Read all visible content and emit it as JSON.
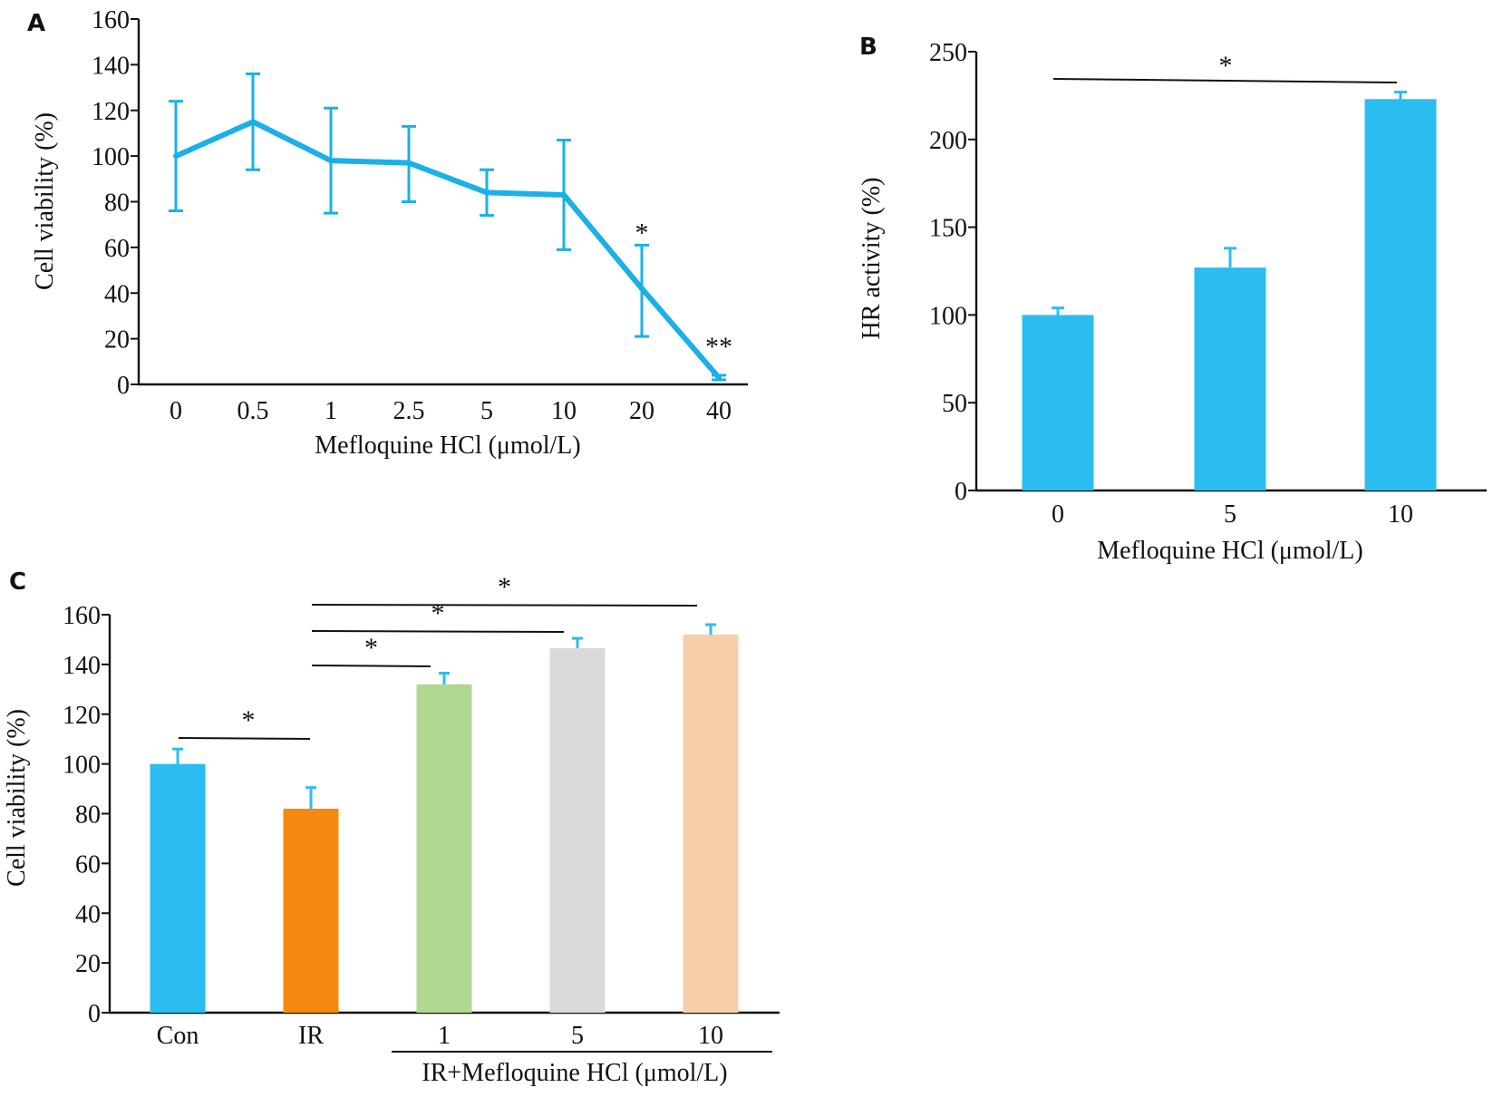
{
  "colors": {
    "line": "#1BB0E8",
    "blue": "#2CBDF0",
    "orange": "#F5880F",
    "green": "#AED78F",
    "gray": "#D9D9D9",
    "peach": "#F7CDAA",
    "axis": "#111111"
  },
  "chart_data": [
    {
      "panel": "A",
      "type": "line",
      "title": "",
      "xlabel": "Mefloquine HCl (μmol/L)",
      "ylabel": "Cell viability (%)",
      "ylim": [
        0,
        160
      ],
      "yticks": [
        0,
        20,
        40,
        60,
        80,
        100,
        120,
        140,
        160
      ],
      "categories": [
        "0",
        "0.5",
        "1",
        "2.5",
        "5",
        "10",
        "20",
        "40"
      ],
      "series": [
        {
          "name": "Cell viability",
          "values": [
            100,
            115,
            98,
            97,
            84,
            83,
            42,
            3
          ],
          "error_low": [
            76,
            94,
            75,
            80,
            74,
            59,
            21,
            2
          ],
          "error_high": [
            124,
            136,
            121,
            113,
            94,
            107,
            61,
            4
          ]
        }
      ],
      "annotations": [
        {
          "category": "20",
          "text": "*"
        },
        {
          "category": "40",
          "text": "**"
        }
      ],
      "grid": false
    },
    {
      "panel": "B",
      "type": "bar",
      "title": "",
      "xlabel": "Mefloquine HCl (μmol/L)",
      "ylabel": "HR activity (%)",
      "ylim": [
        0,
        250
      ],
      "yticks": [
        0,
        50,
        100,
        150,
        200,
        250
      ],
      "categories": [
        "0",
        "5",
        "10"
      ],
      "values": [
        100,
        127,
        223
      ],
      "error_high": [
        104,
        138,
        227
      ],
      "significance": [
        {
          "from": "0",
          "to": "10",
          "text": "*"
        }
      ],
      "grid": false
    },
    {
      "panel": "C",
      "type": "bar",
      "title": "",
      "xlabel": "IR+Mefloquine HCl (μmol/L)",
      "ylabel": "Cell viability (%)",
      "ylim": [
        0,
        160
      ],
      "yticks": [
        0,
        20,
        40,
        60,
        80,
        100,
        120,
        140,
        160
      ],
      "categories": [
        "Con",
        "IR",
        "1",
        "5",
        "10"
      ],
      "values": [
        100,
        82,
        132,
        146.5,
        152
      ],
      "error_high": [
        106,
        90.5,
        136.5,
        150.5,
        156
      ],
      "bar_colors": [
        "#2CBDF0",
        "#F5880F",
        "#AED78F",
        "#D9D9D9",
        "#F7CDAA"
      ],
      "significance": [
        {
          "from": "Con",
          "to": "IR",
          "text": "*"
        },
        {
          "from": "IR",
          "to": "1",
          "text": "*"
        },
        {
          "from": "IR",
          "to": "5",
          "text": "*"
        },
        {
          "from": "IR",
          "to": "10",
          "text": "*"
        }
      ],
      "grid": false
    }
  ]
}
